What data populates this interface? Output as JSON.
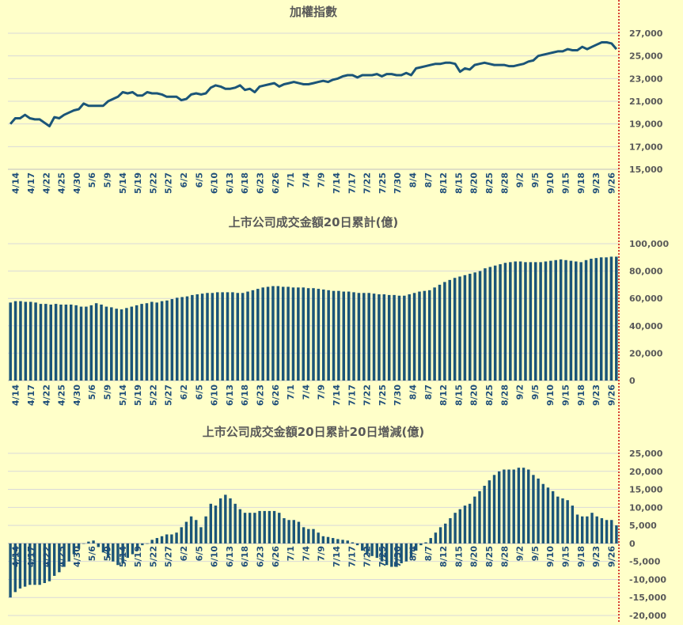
{
  "colors": {
    "background": "#ffffc9",
    "series": "#1b5578",
    "grid": "#d9d9d9",
    "marker": "#cc0000",
    "text": "#595959",
    "tick": "#1f4e79"
  },
  "chart_data": [
    {
      "type": "line",
      "title": "加權指數",
      "ylim": [
        15000,
        27000
      ],
      "yticks": [
        15000,
        17000,
        19000,
        21000,
        23000,
        25000,
        27000
      ],
      "tick_labels": [
        "4/14",
        "4/17",
        "4/22",
        "4/25",
        "4/30",
        "5/6",
        "5/9",
        "5/14",
        "5/19",
        "5/22",
        "5/27",
        "6/2",
        "6/5",
        "6/10",
        "6/13",
        "6/18",
        "6/23",
        "6/26",
        "7/1",
        "7/4",
        "7/9",
        "7/14",
        "7/17",
        "7/22",
        "7/25",
        "7/30",
        "8/4",
        "8/7",
        "8/12",
        "8/15",
        "8/20",
        "8/25",
        "8/28",
        "9/2",
        "9/5",
        "9/10",
        "9/15",
        "9/18",
        "9/23",
        "9/26"
      ],
      "values": [
        19000,
        19500,
        19500,
        19800,
        19500,
        19400,
        19400,
        19100,
        18800,
        19600,
        19500,
        19800,
        20000,
        20200,
        20300,
        20800,
        20600,
        20600,
        20600,
        20600,
        21000,
        21200,
        21400,
        21800,
        21700,
        21800,
        21500,
        21500,
        21800,
        21700,
        21700,
        21600,
        21400,
        21400,
        21400,
        21100,
        21200,
        21600,
        21700,
        21600,
        21700,
        22200,
        22400,
        22300,
        22100,
        22100,
        22200,
        22400,
        22000,
        22100,
        21800,
        22300,
        22400,
        22500,
        22600,
        22300,
        22500,
        22600,
        22700,
        22600,
        22500,
        22500,
        22600,
        22700,
        22800,
        22700,
        22900,
        23000,
        23200,
        23300,
        23300,
        23100,
        23300,
        23300,
        23300,
        23400,
        23200,
        23400,
        23400,
        23300,
        23300,
        23500,
        23300,
        23900,
        24000,
        24100,
        24200,
        24300,
        24300,
        24400,
        24400,
        24300,
        23600,
        23900,
        23800,
        24200,
        24300,
        24400,
        24300,
        24200,
        24200,
        24200,
        24100,
        24100,
        24200,
        24300,
        24500,
        24600,
        25000,
        25100,
        25200,
        25300,
        25400,
        25400,
        25600,
        25500,
        25500,
        25800,
        25600,
        25800,
        26000,
        26200,
        26200,
        26100,
        25600
      ]
    },
    {
      "type": "bar",
      "title": "上市公司成交金額20日累計(億)",
      "ylim": [
        0,
        100000
      ],
      "yticks": [
        0,
        20000,
        40000,
        60000,
        80000,
        100000
      ],
      "tick_labels": [
        "4/14",
        "4/17",
        "4/22",
        "4/25",
        "4/30",
        "5/6",
        "5/9",
        "5/14",
        "5/19",
        "5/22",
        "5/27",
        "6/2",
        "6/5",
        "6/10",
        "6/13",
        "6/18",
        "6/23",
        "6/26",
        "7/1",
        "7/4",
        "7/9",
        "7/14",
        "7/17",
        "7/22",
        "7/25",
        "7/30",
        "8/4",
        "8/7",
        "8/12",
        "8/15",
        "8/20",
        "8/25",
        "8/28",
        "9/2",
        "9/5",
        "9/10",
        "9/15",
        "9/18",
        "9/23",
        "9/26"
      ],
      "values": [
        57000,
        58000,
        58000,
        57500,
        57500,
        57000,
        56000,
        56000,
        55500,
        56000,
        55500,
        55500,
        55500,
        55000,
        54000,
        54000,
        55000,
        56500,
        55500,
        54000,
        53500,
        52500,
        52000,
        53000,
        54000,
        55000,
        56000,
        56500,
        57500,
        57000,
        58000,
        58500,
        59500,
        60500,
        61000,
        61500,
        62500,
        63000,
        63500,
        64000,
        64000,
        64500,
        64500,
        64500,
        64500,
        64000,
        64000,
        65000,
        66000,
        67000,
        68000,
        68500,
        69000,
        69000,
        68500,
        68500,
        68000,
        68000,
        68000,
        67500,
        67500,
        67000,
        66500,
        66000,
        65500,
        65500,
        65000,
        65000,
        64500,
        64000,
        64000,
        64000,
        63500,
        63000,
        63000,
        62500,
        62500,
        62000,
        62000,
        63000,
        64000,
        65000,
        65500,
        66000,
        68000,
        70000,
        72000,
        73500,
        75000,
        76000,
        77000,
        78000,
        79000,
        80000,
        82000,
        83000,
        84000,
        85000,
        86000,
        86500,
        87000,
        87000,
        86500,
        86500,
        86500,
        86500,
        87000,
        87500,
        88000,
        88500,
        88000,
        87500,
        87000,
        86500,
        88000,
        89000,
        89500,
        90000,
        90000,
        90500,
        90500
      ]
    },
    {
      "type": "bar",
      "title": "上市公司成交金額20日累計20日增減(億)",
      "ylim": [
        -20000,
        25000
      ],
      "yticks": [
        -20000,
        -15000,
        -10000,
        -5000,
        0,
        5000,
        10000,
        15000,
        20000,
        25000
      ],
      "tick_labels": [
        "4/14",
        "4/17",
        "4/22",
        "4/25",
        "4/30",
        "5/6",
        "5/9",
        "5/14",
        "5/19",
        "5/22",
        "5/27",
        "6/2",
        "6/5",
        "6/10",
        "6/13",
        "6/18",
        "6/23",
        "6/26",
        "7/1",
        "7/4",
        "7/9",
        "7/14",
        "7/17",
        "7/22",
        "7/25",
        "7/30",
        "8/4",
        "8/7",
        "8/12",
        "8/15",
        "8/20",
        "8/25",
        "8/28",
        "9/2",
        "9/5",
        "9/10",
        "9/15",
        "9/18",
        "9/23",
        "9/26"
      ],
      "values": [
        -15000,
        -13500,
        -12500,
        -12000,
        -11500,
        -11500,
        -11500,
        -11000,
        -10500,
        -9000,
        -8000,
        -6500,
        -5000,
        -3000,
        -1500,
        0,
        500,
        800,
        -1000,
        -2500,
        -4000,
        -5000,
        -6000,
        -5500,
        -4000,
        -3000,
        -2000,
        -500,
        0,
        1000,
        1500,
        2000,
        2500,
        2500,
        3000,
        4500,
        6000,
        7500,
        6500,
        4500,
        7500,
        11000,
        10500,
        12500,
        13500,
        12500,
        11000,
        9500,
        8500,
        8500,
        8500,
        9000,
        9000,
        9000,
        9000,
        8500,
        7000,
        6500,
        6500,
        6000,
        4500,
        4000,
        4000,
        3000,
        2000,
        1800,
        1500,
        1200,
        1000,
        800,
        300,
        -500,
        -2000,
        -3000,
        -3500,
        -4000,
        -5000,
        -6000,
        -6500,
        -6500,
        -5500,
        -5000,
        -4000,
        -2000,
        -500,
        300,
        1500,
        3000,
        4500,
        5500,
        7000,
        8500,
        9500,
        10500,
        11000,
        13000,
        14500,
        16000,
        17500,
        19000,
        20000,
        20500,
        20500,
        20500,
        21000,
        21000,
        20500,
        19000,
        18000,
        16500,
        15500,
        14500,
        13000,
        12500,
        12000,
        10500,
        8000,
        7500,
        7500,
        8500,
        7500,
        7000,
        6500,
        6500,
        5000
      ]
    }
  ]
}
